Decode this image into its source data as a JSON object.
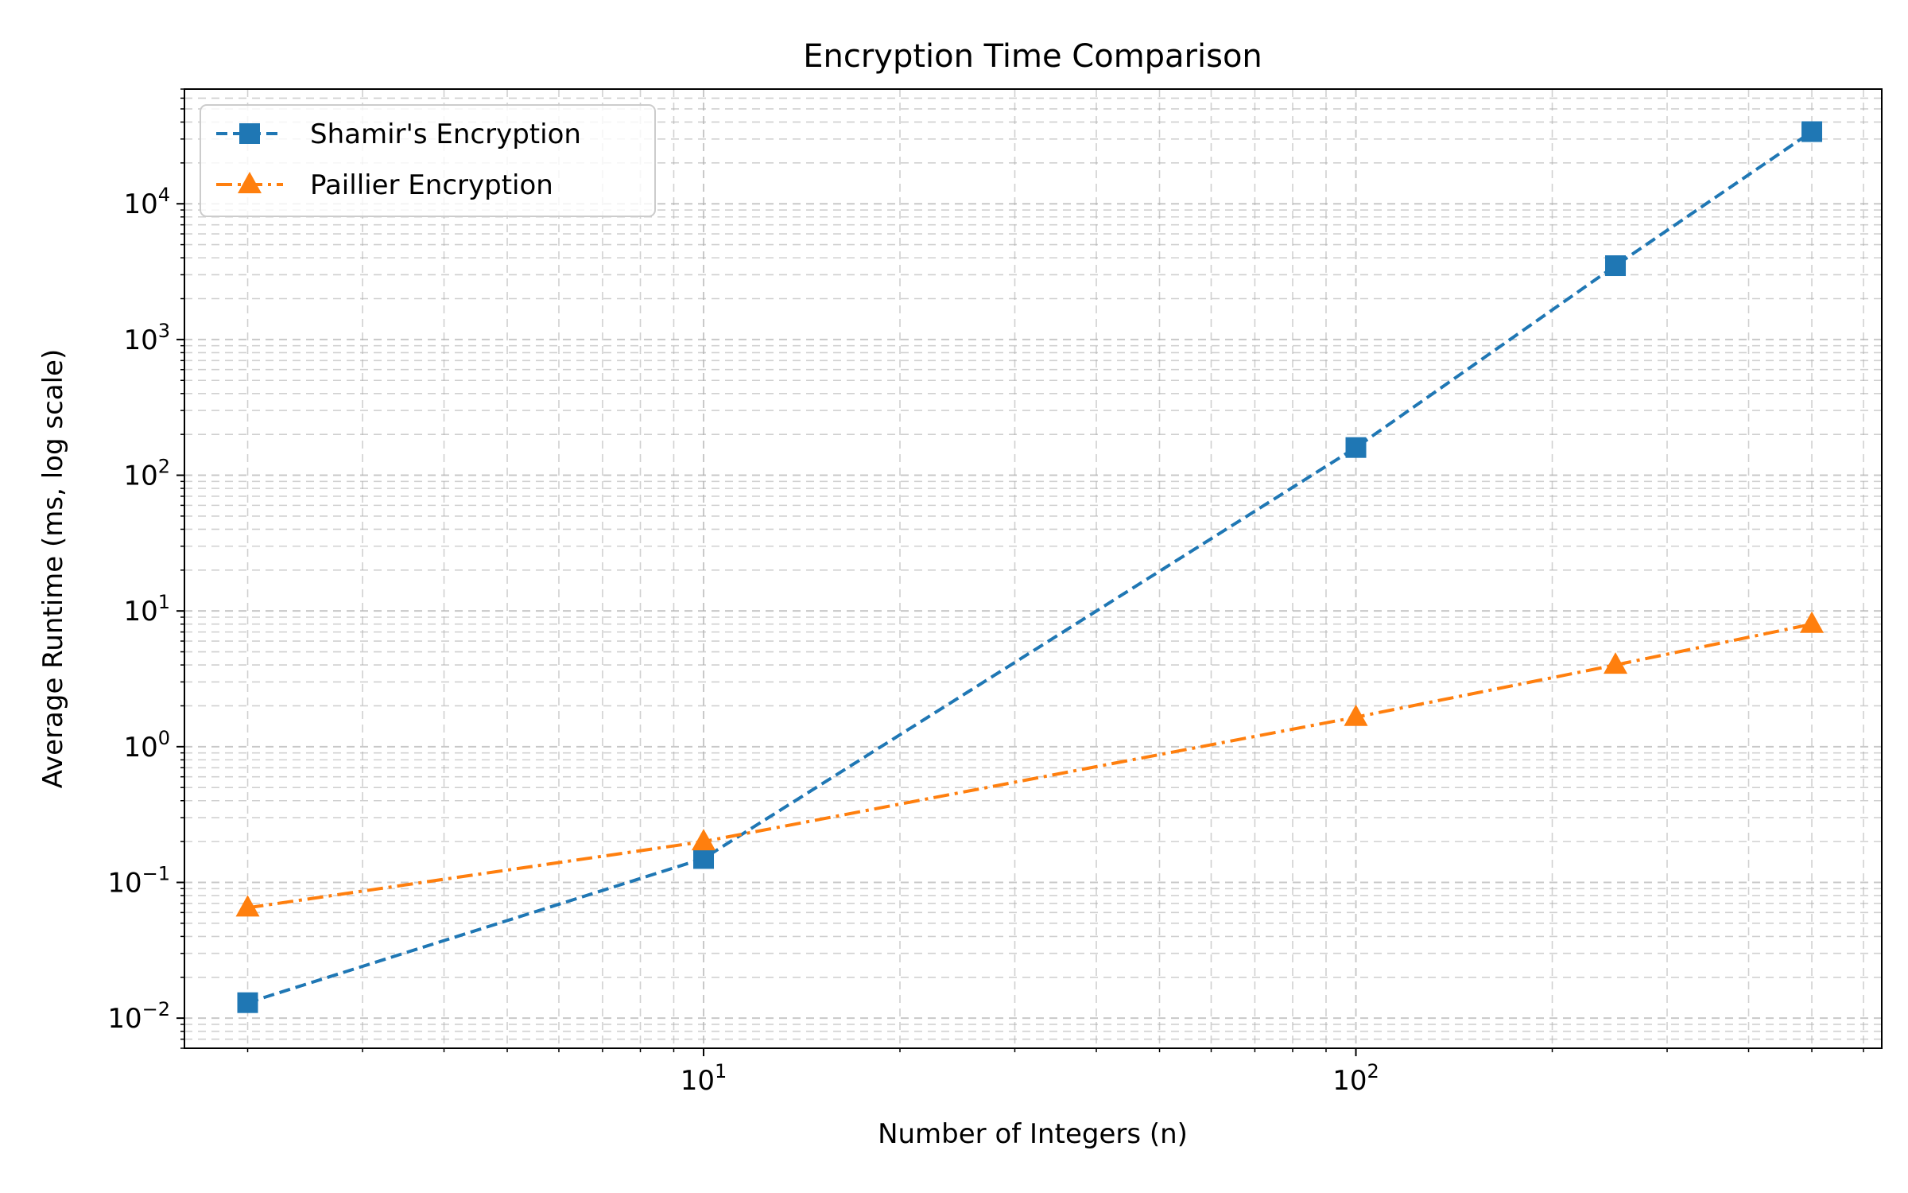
{
  "chart_data": {
    "type": "line",
    "title": "Encryption Time Comparison",
    "xlabel": "Number of Integers (n)",
    "ylabel": "Average Runtime (ms, log scale)",
    "xscale": "log",
    "yscale": "log",
    "xlim": [
      1.6,
      640
    ],
    "ylim": [
      0.006,
      70000
    ],
    "x_major_ticks": [
      {
        "value": 10,
        "base": "10",
        "exp": "1"
      },
      {
        "value": 100,
        "base": "10",
        "exp": "2"
      }
    ],
    "y_major_ticks": [
      {
        "value": 0.01,
        "base": "10",
        "exp": "−2"
      },
      {
        "value": 0.1,
        "base": "10",
        "exp": "−1"
      },
      {
        "value": 1,
        "base": "10",
        "exp": "0"
      },
      {
        "value": 10,
        "base": "10",
        "exp": "1"
      },
      {
        "value": 100,
        "base": "10",
        "exp": "2"
      },
      {
        "value": 1000,
        "base": "10",
        "exp": "3"
      },
      {
        "value": 10000,
        "base": "10",
        "exp": "4"
      }
    ],
    "grid": true,
    "grid_which": "both",
    "legend_position": "upper-left",
    "series": [
      {
        "name": "Shamir's Encryption",
        "color": "#1f77b4",
        "linestyle": "dashed",
        "marker": "square",
        "x": [
          2,
          10,
          100,
          250,
          500
        ],
        "y": [
          0.013,
          0.15,
          160,
          3500,
          34000
        ]
      },
      {
        "name": "Paillier Encryption",
        "color": "#ff7f0e",
        "linestyle": "dashdot",
        "marker": "triangle",
        "x": [
          2,
          10,
          100,
          250,
          500
        ],
        "y": [
          0.065,
          0.2,
          1.65,
          4.0,
          8.0
        ]
      }
    ]
  }
}
